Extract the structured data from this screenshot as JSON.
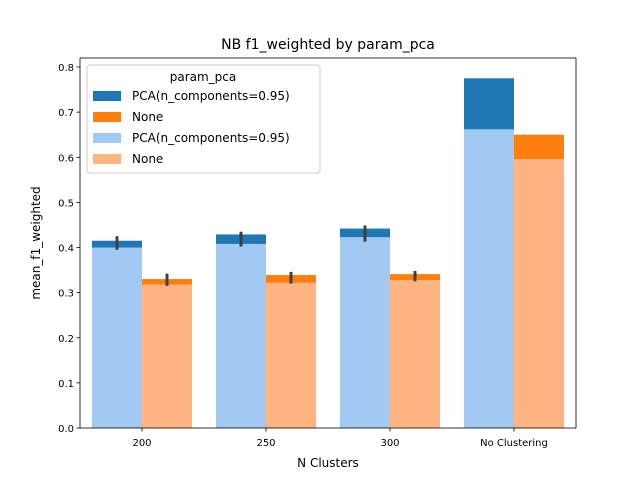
{
  "chart_data": {
    "type": "bar",
    "title": "NB f1_weighted by param_pca",
    "xlabel": "N Clusters",
    "ylabel": "mean_f1_weighted",
    "ylim": [
      0,
      0.82
    ],
    "yticks": [
      0.0,
      0.1,
      0.2,
      0.3,
      0.4,
      0.5,
      0.6,
      0.7,
      0.8
    ],
    "ytick_labels": [
      "0.0",
      "0.1",
      "0.2",
      "0.3",
      "0.4",
      "0.5",
      "0.6",
      "0.7",
      "0.8"
    ],
    "categories": [
      "200",
      "250",
      "300",
      "No Clustering"
    ],
    "grid": false,
    "legend": {
      "title": "param_pca",
      "placement": "top-left"
    },
    "series": [
      {
        "name": "PCA(n_components=0.95)",
        "layer": "dark",
        "color": "#1f77b4",
        "values": [
          0.415,
          0.429,
          0.442,
          0.775
        ],
        "errors": [
          [
            0.395,
            0.425
          ],
          [
            0.402,
            0.435
          ],
          [
            0.413,
            0.449
          ],
          null
        ]
      },
      {
        "name": "None",
        "layer": "dark",
        "color": "#ff7f0e",
        "values": [
          0.33,
          0.339,
          0.341,
          0.65
        ],
        "errors": [
          [
            0.315,
            0.342
          ],
          [
            0.32,
            0.346
          ],
          [
            0.325,
            0.348
          ],
          null
        ]
      },
      {
        "name": "PCA(n_components=0.95)",
        "layer": "light",
        "color": "#a1c9f4",
        "values": [
          0.4,
          0.408,
          0.423,
          0.662
        ],
        "errors": [
          [
            0.395,
            0.425
          ],
          [
            0.402,
            0.435
          ],
          [
            0.413,
            0.449
          ],
          null
        ]
      },
      {
        "name": "None",
        "layer": "light",
        "color": "#ffb482",
        "values": [
          0.318,
          0.322,
          0.328,
          0.596
        ],
        "errors": [
          [
            0.315,
            0.342
          ],
          [
            0.32,
            0.346
          ],
          [
            0.325,
            0.348
          ],
          null
        ]
      }
    ]
  }
}
